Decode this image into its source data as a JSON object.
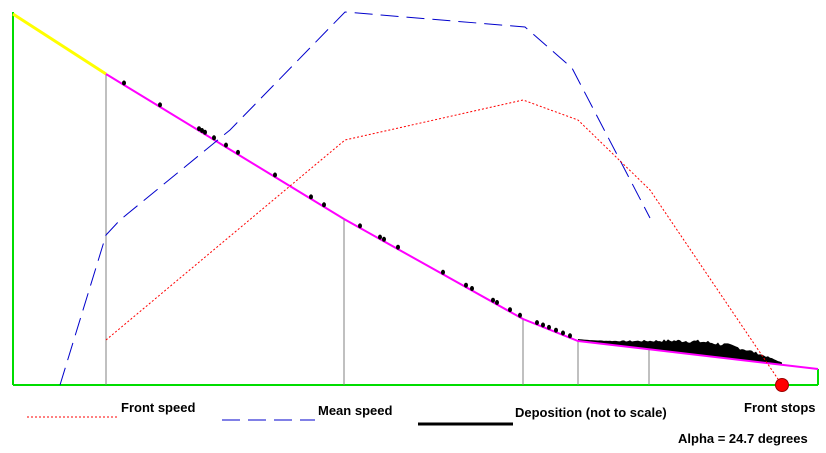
{
  "diagram": {
    "legend": {
      "front_speed": "Front speed",
      "mean_speed": "Mean speed",
      "deposition": "Deposition (not to scale)"
    },
    "front_stops_label": "Front stops",
    "alpha_label": "Alpha = 24.7 degrees",
    "colors": {
      "axis": "#00dd00",
      "release_slope": "#ffff00",
      "path_profile": "#ff00ff",
      "front_speed": "#ff0000",
      "mean_speed": "#0000cc",
      "deposition": "#000000",
      "front_stop_marker": "#ff0000",
      "vertical_markers": "#808080"
    }
  }
}
